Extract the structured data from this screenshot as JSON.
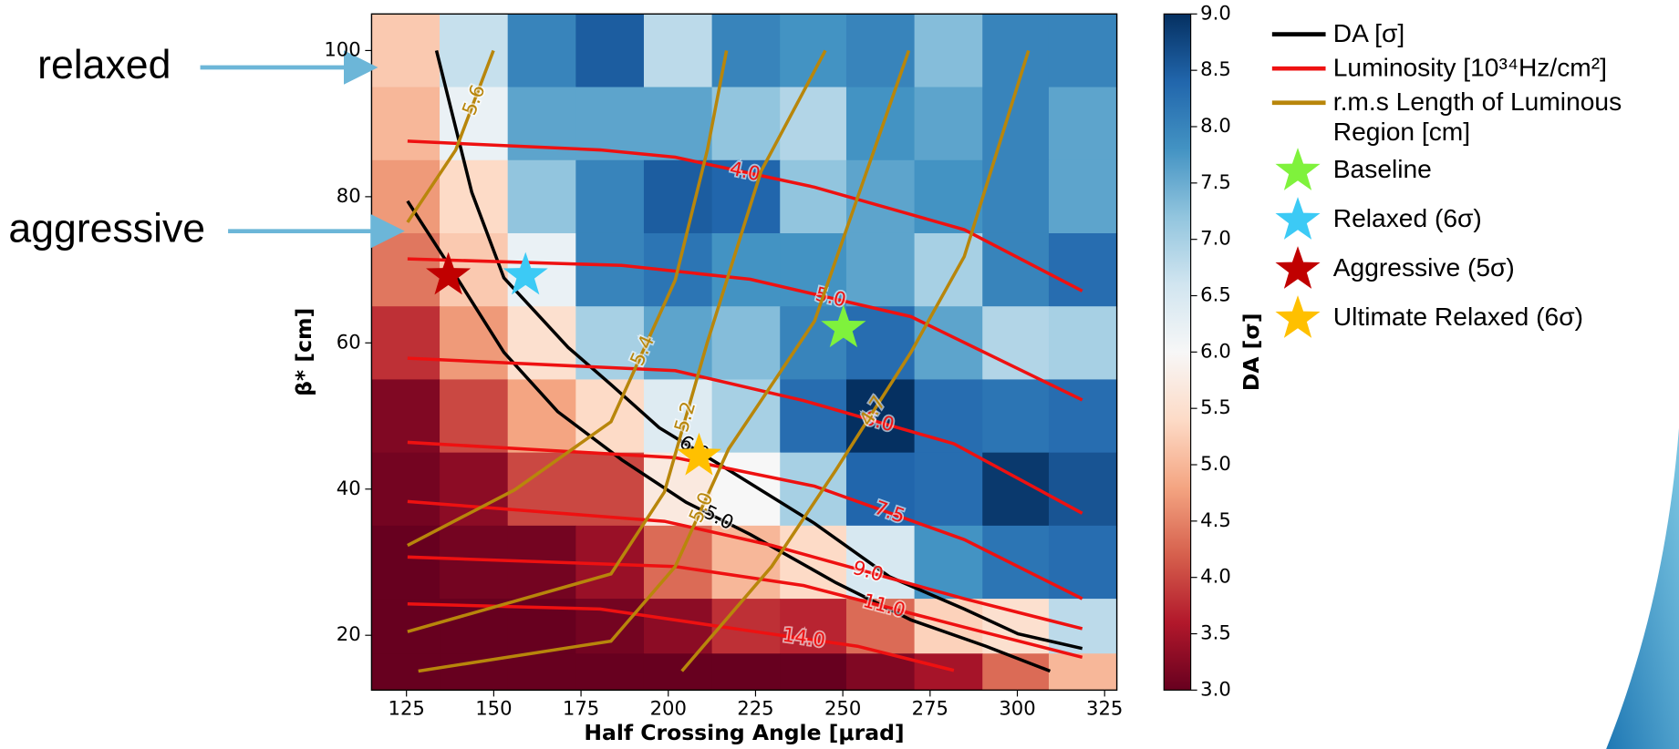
{
  "chart_data": {
    "type": "heatmap",
    "x_label": "Half Crossing Angle [μrad]",
    "y_label": "β* [cm]",
    "colorbar_label": "DA [σ]",
    "xlim": [
      115,
      328.5
    ],
    "ylim": [
      12.5,
      105
    ],
    "xticks": [
      125,
      150,
      175,
      200,
      225,
      250,
      275,
      300,
      325
    ],
    "yticks": [
      20,
      40,
      60,
      80,
      100
    ],
    "x_edges": [
      115,
      134.5,
      154,
      173.5,
      193,
      212.5,
      232,
      251,
      270.5,
      290,
      309,
      328.5
    ],
    "y_edges": [
      105,
      95,
      85,
      75,
      65,
      55,
      45,
      35,
      25,
      17.5,
      12.5
    ],
    "z": [
      [
        5.2,
        6.7,
        8.0,
        8.5,
        6.8,
        8.0,
        7.8,
        8.0,
        7.3,
        8.0,
        8.0
      ],
      [
        5.0,
        6.2,
        7.6,
        7.6,
        7.6,
        7.2,
        6.9,
        7.8,
        7.6,
        8.0,
        7.6
      ],
      [
        4.7,
        5.4,
        7.2,
        8.0,
        8.5,
        8.4,
        7.2,
        7.6,
        7.8,
        8.0,
        7.6
      ],
      [
        4.4,
        5.2,
        6.2,
        8.0,
        8.2,
        7.8,
        7.8,
        7.6,
        7.0,
        8.0,
        8.3
      ],
      [
        3.8,
        4.7,
        5.5,
        7.0,
        7.6,
        7.3,
        8.0,
        8.3,
        7.6,
        6.9,
        7.0
      ],
      [
        3.2,
        4.0,
        4.8,
        5.4,
        6.4,
        7.0,
        8.3,
        9.0,
        8.3,
        8.2,
        8.3
      ],
      [
        3.1,
        3.3,
        4.0,
        4.0,
        5.7,
        6.0,
        7.0,
        8.4,
        8.3,
        8.9,
        8.6
      ],
      [
        3.0,
        3.1,
        3.1,
        3.4,
        4.3,
        5.0,
        5.4,
        6.5,
        7.8,
        8.2,
        8.3
      ],
      [
        3.0,
        3.0,
        3.0,
        3.1,
        3.3,
        3.8,
        3.7,
        4.3,
        5.3,
        5.5,
        6.8
      ],
      [
        3.0,
        3.0,
        3.0,
        3.0,
        3.0,
        3.0,
        3.0,
        3.2,
        3.5,
        4.3,
        5.0
      ]
    ],
    "colormap": "RdBu",
    "clim": [
      3,
      9
    ],
    "cticks": [
      {
        "value": 3,
        "label": "3.0"
      },
      {
        "value": 3.5,
        "label": "3.5"
      },
      {
        "value": 4,
        "label": "4.0"
      },
      {
        "value": 4.5,
        "label": "4.5"
      },
      {
        "value": 5,
        "label": "5.0"
      },
      {
        "value": 5.5,
        "label": "5.5"
      },
      {
        "value": 6,
        "label": "6.0"
      },
      {
        "value": 6.5,
        "label": "6.5"
      },
      {
        "value": 7,
        "label": "7.0"
      },
      {
        "value": 7.5,
        "label": "7.5"
      },
      {
        "value": 8,
        "label": "8.0"
      },
      {
        "value": 8.5,
        "label": "8.5"
      },
      {
        "value": 9,
        "label": "9.0"
      }
    ],
    "contours": [
      {
        "name": "DA [σ]",
        "color": "#000000",
        "lines": [
          {
            "label": "6.0",
            "x": [
              133.6,
              143.7,
              152.9,
              171.3,
              183.6,
              197.4,
              217.3,
              241.9,
              263.4,
              284.8,
              300.2,
              318.6
            ],
            "y": [
              100,
              80.6,
              68.9,
              59.4,
              54.3,
              48.4,
              42.6,
              35.3,
              28,
              23.6,
              20.2,
              18.2
            ]
          },
          {
            "label": "5.0",
            "x": [
              125.3,
              137.6,
              152.9,
              168.3,
              186.7,
              205.1,
              223.5,
              248,
              269.5,
              291,
              309.4
            ],
            "y": [
              79.4,
              70.3,
              58.7,
              50.6,
              44,
              38.2,
              33.8,
              27.2,
              22.1,
              18.5,
              15.1
            ]
          }
        ]
      },
      {
        "name": "Luminosity [10³⁴Hz/cm²]",
        "color": "#ee1111",
        "lines": [
          {
            "label": "4.0",
            "x": [
              125.3,
              180.5,
              202,
              241.9,
              284.8,
              318.6
            ],
            "y": [
              87.6,
              86.4,
              85.4,
              81.3,
              75.5,
              67.1
            ]
          },
          {
            "label": "5.0",
            "x": [
              125.3,
              186.7,
              223.5,
              269.5,
              318.6
            ],
            "y": [
              71.5,
              70.6,
              68.7,
              63.6,
              52.2
            ]
          },
          {
            "label": "6.0",
            "x": [
              125.3,
              202,
              238.8,
              281.8,
              318.6
            ],
            "y": [
              57.9,
              56.2,
              52.1,
              46.2,
              36.7
            ]
          },
          {
            "label": "7.5",
            "x": [
              125.3,
              202,
              241.9,
              284.8,
              318.6
            ],
            "y": [
              46.4,
              44.3,
              40.4,
              33.1,
              25.0
            ]
          },
          {
            "label": "9.0",
            "x": [
              125.3,
              198.9,
              229.6,
              284.8,
              318.6
            ],
            "y": [
              38.3,
              35.6,
              32.3,
              25.0,
              20.9
            ]
          },
          {
            "label": "11.0",
            "x": [
              125.3,
              202,
              238.8,
              284.8,
              318.6
            ],
            "y": [
              30.7,
              29.4,
              26.8,
              21.1,
              17.0
            ]
          },
          {
            "label": "14.0",
            "x": [
              125.3,
              180.5,
              223.5,
              254.2,
              281.8
            ],
            "y": [
              24.3,
              23.6,
              20.6,
              18.5,
              15.2
            ]
          }
        ]
      },
      {
        "name": "r.m.s Length of Luminous Region [cm]",
        "color": "#b8860b",
        "lines": [
          {
            "label": "5.6",
            "x": [
              125.3,
              139.1,
              149.9
            ],
            "y": [
              76.5,
              86.4,
              100
            ]
          },
          {
            "label": "5.4",
            "x": [
              125.3,
              156,
              183.6,
              202,
              211.2,
              216.7
            ],
            "y": [
              32.3,
              39.9,
              49.2,
              68.6,
              86.4,
              100
            ]
          },
          {
            "label": "5.2",
            "x": [
              125.3,
              183.6,
              198.9,
              211.2,
              226.6,
              245
            ],
            "y": [
              20.5,
              28.4,
              39.6,
              60.1,
              83.5,
              100
            ]
          },
          {
            "label": "5.0",
            "x": [
              128.4,
              183.6,
              202,
              217.3,
              241.9,
              268.9
            ],
            "y": [
              15.1,
              19.2,
              29.4,
              45.5,
              63,
              100
            ]
          },
          {
            "label": "4.7",
            "x": [
              203.9,
              229.6,
              248,
              269.5,
              284.8,
              303.2
            ],
            "y": [
              15.1,
              29.4,
              42.6,
              58.7,
              71.8,
              100
            ]
          }
        ]
      }
    ],
    "markers": [
      {
        "name": "Baseline",
        "color": "#7ff23c",
        "x": 250.2,
        "y": 62
      },
      {
        "name": "Relaxed (6σ)",
        "color": "#3ccaf5",
        "x": 159.1,
        "y": 69.2
      },
      {
        "name": "Aggressive (5σ)",
        "color": "#c00000",
        "x": 137,
        "y": 69.2
      },
      {
        "name": "Ultimate Relaxed (6σ)",
        "color": "#ffc000",
        "x": 208.8,
        "y": 44.5
      }
    ],
    "annotations": [
      "relaxed",
      "aggressive"
    ]
  }
}
